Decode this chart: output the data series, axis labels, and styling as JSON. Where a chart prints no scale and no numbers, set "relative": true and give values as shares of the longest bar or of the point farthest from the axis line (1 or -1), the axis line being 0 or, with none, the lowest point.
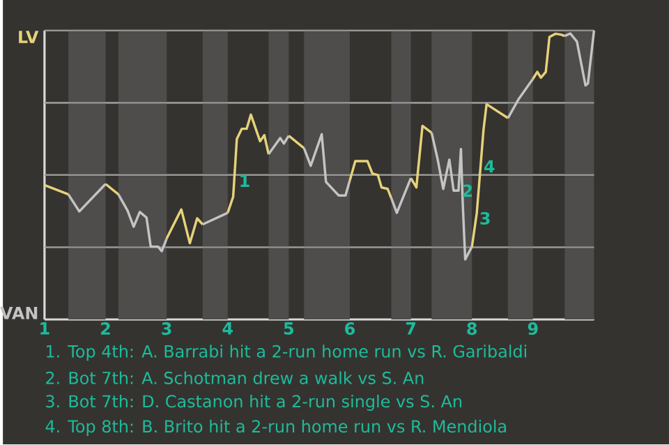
{
  "chart_data": {
    "type": "line",
    "relative": true,
    "xlim": [
      1,
      10
    ],
    "xticks": [
      1,
      2,
      3,
      4,
      5,
      6,
      7,
      8,
      9
    ],
    "grid": "y",
    "marker": "none",
    "line_style": "solid",
    "series": [
      {
        "color": "#e6d27a",
        "x": [
          1.0,
          1.39,
          null,
          2.0,
          2.21,
          null,
          3.0,
          3.24,
          3.38,
          3.5,
          3.59,
          null,
          4.0,
          4.09,
          4.15,
          4.23,
          4.31,
          4.38,
          4.53,
          4.6,
          4.67,
          null,
          5.0,
          5.25,
          null,
          6.0,
          6.09,
          6.29,
          6.37,
          6.46,
          6.52,
          6.62,
          6.68,
          null,
          7.0,
          7.09,
          7.19,
          7.34,
          null,
          8.0,
          8.08,
          8.19,
          8.24,
          8.59,
          null,
          9.0,
          9.07,
          9.13,
          9.21,
          9.27,
          9.37,
          9.46,
          9.52
        ],
        "values": [
          0.465,
          0.433,
          null,
          0.469,
          0.433,
          null,
          0.28,
          0.381,
          0.264,
          0.35,
          0.329,
          null,
          0.369,
          0.425,
          0.625,
          0.66,
          0.66,
          0.709,
          0.617,
          0.638,
          0.572,
          null,
          0.636,
          0.593,
          null,
          0.481,
          0.548,
          0.548,
          0.505,
          0.5,
          0.457,
          0.452,
          0.42,
          null,
          0.489,
          0.457,
          0.67,
          0.646,
          null,
          0.252,
          0.369,
          0.657,
          0.745,
          0.697,
          null,
          0.833,
          0.857,
          0.837,
          0.857,
          0.978,
          0.989,
          0.986,
          0.981
        ]
      },
      {
        "color": "#c4c4c4",
        "x": [
          1.39,
          1.57,
          2.0,
          null,
          2.21,
          2.36,
          2.46,
          2.56,
          2.67,
          2.74,
          2.86,
          2.92,
          3.0,
          null,
          3.59,
          4.0,
          null,
          4.67,
          4.86,
          4.92,
          5.0,
          null,
          5.25,
          5.36,
          5.54,
          5.61,
          5.82,
          5.93,
          6.0,
          null,
          6.68,
          6.77,
          7.0,
          null,
          7.34,
          7.44,
          7.53,
          7.63,
          7.7,
          7.78,
          7.82,
          7.85,
          7.89,
          8.0,
          null,
          8.59,
          8.76,
          9.0,
          null,
          9.52,
          9.61,
          9.72,
          9.86,
          9.9,
          10.0
        ],
        "values": [
          0.433,
          0.374,
          0.469,
          null,
          0.433,
          0.377,
          0.321,
          0.372,
          0.353,
          0.252,
          0.252,
          0.236,
          0.28,
          null,
          0.329,
          0.369,
          null,
          0.572,
          0.628,
          0.609,
          0.636,
          null,
          0.593,
          0.532,
          0.641,
          0.476,
          0.429,
          0.429,
          0.481,
          null,
          0.42,
          0.369,
          0.489,
          null,
          0.646,
          0.553,
          0.452,
          0.553,
          0.446,
          0.446,
          0.59,
          0.401,
          0.208,
          0.252,
          null,
          0.697,
          0.761,
          0.833,
          null,
          0.981,
          0.99,
          0.962,
          0.81,
          0.817,
          1.0
        ]
      }
    ],
    "bands": [
      {
        "axis": "x",
        "from": 1.39,
        "to": 2,
        "color": "#4e4d4b"
      },
      {
        "axis": "x",
        "from": 2.21,
        "to": 3,
        "color": "#4e4d4b"
      },
      {
        "axis": "x",
        "from": 3.59,
        "to": 4,
        "color": "#4e4d4b"
      },
      {
        "axis": "x",
        "from": 4.67,
        "to": 5,
        "color": "#4e4d4b"
      },
      {
        "axis": "x",
        "from": 5.25,
        "to": 6,
        "color": "#4e4d4b"
      },
      {
        "axis": "x",
        "from": 6.68,
        "to": 7,
        "color": "#4e4d4b"
      },
      {
        "axis": "x",
        "from": 7.34,
        "to": 8,
        "color": "#4e4d4b"
      },
      {
        "axis": "x",
        "from": 8.59,
        "to": 9,
        "color": "#4e4d4b"
      },
      {
        "axis": "x",
        "from": 9.52,
        "to": 10,
        "color": "#4e4d4b"
      }
    ],
    "annotations": [
      "LV",
      "VAN",
      {
        "text": "1",
        "x": 4.13,
        "y": 0.48
      },
      {
        "text": "2",
        "x": 7.78,
        "y": 0.446
      },
      {
        "text": "3",
        "x": 8.07,
        "y": 0.35
      },
      {
        "text": "4",
        "x": 8.14,
        "y": 0.53
      },
      "1. Top 4th: A. Barrabi hit a 2-run home run vs R. Garibaldi",
      "2. Bot 7th: A. Schotman drew a walk vs S. An",
      "3. Bot 7th: D. Castanon hit a 2-run single vs S. An",
      "4. Top 8th: B. Brito hit a 2-run home run vs R. Mendiola"
    ]
  }
}
